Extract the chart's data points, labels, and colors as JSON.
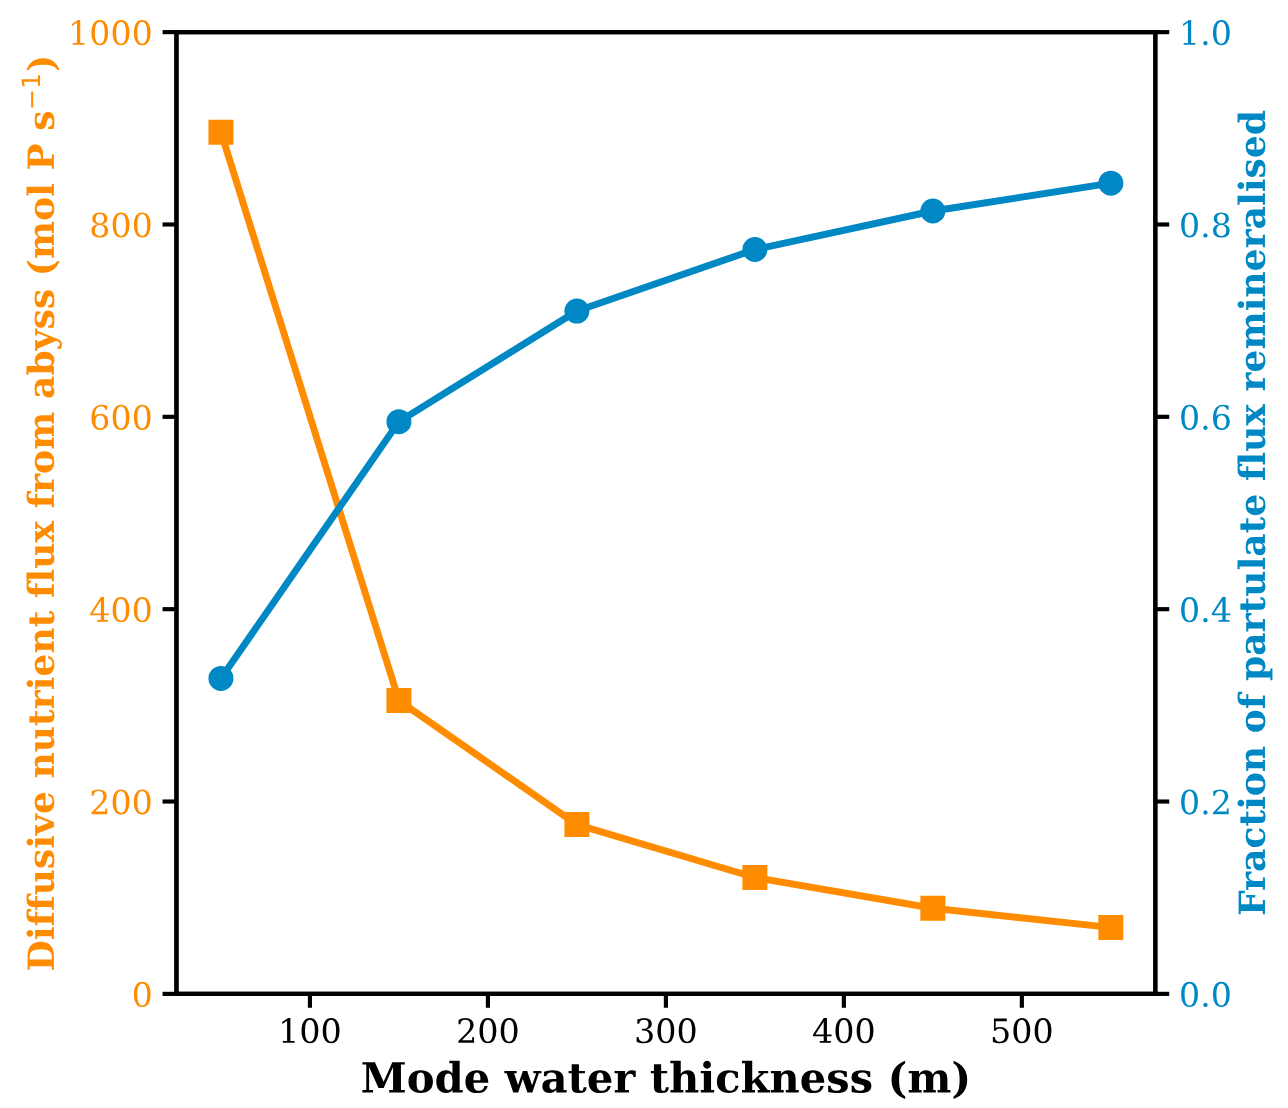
{
  "chart_data": {
    "type": "line",
    "xlabel": "Mode water thickness (m)",
    "ylabel": "Diffusive nutrient flux from abyss (mol P s$^{−1}$)",
    "y2label": "Fraction of partulate flux remineralised",
    "x": [
      50,
      150,
      250,
      350,
      450,
      550
    ],
    "series": [
      {
        "color": "#ff8c00",
        "marker": "square",
        "values": [
          896,
          305,
          176,
          121,
          89,
          69
        ]
      },
      {
        "color": "#0088c4",
        "marker": "circle",
        "axis": "y2",
        "values": [
          0.328,
          0.595,
          0.71,
          0.774,
          0.814,
          0.843
        ]
      }
    ],
    "xlim": [
      25,
      575
    ],
    "xticks": [
      100,
      200,
      300,
      400,
      500
    ],
    "ylim": [
      0,
      1000
    ],
    "yticks": [
      0,
      200,
      400,
      600,
      800,
      1000
    ],
    "y2lim": [
      0,
      1
    ],
    "y2ticks": [
      {
        "value": 0,
        "label": "0.0"
      },
      {
        "value": 0.2,
        "label": "0.2"
      },
      {
        "value": 0.4,
        "label": "0.4"
      },
      {
        "value": 0.6,
        "label": "0.6"
      },
      {
        "value": 0.8,
        "label": "0.8"
      },
      {
        "value": 1,
        "label": "1.0"
      }
    ],
    "grid": false,
    "legend": false,
    "line_style": "solid"
  }
}
